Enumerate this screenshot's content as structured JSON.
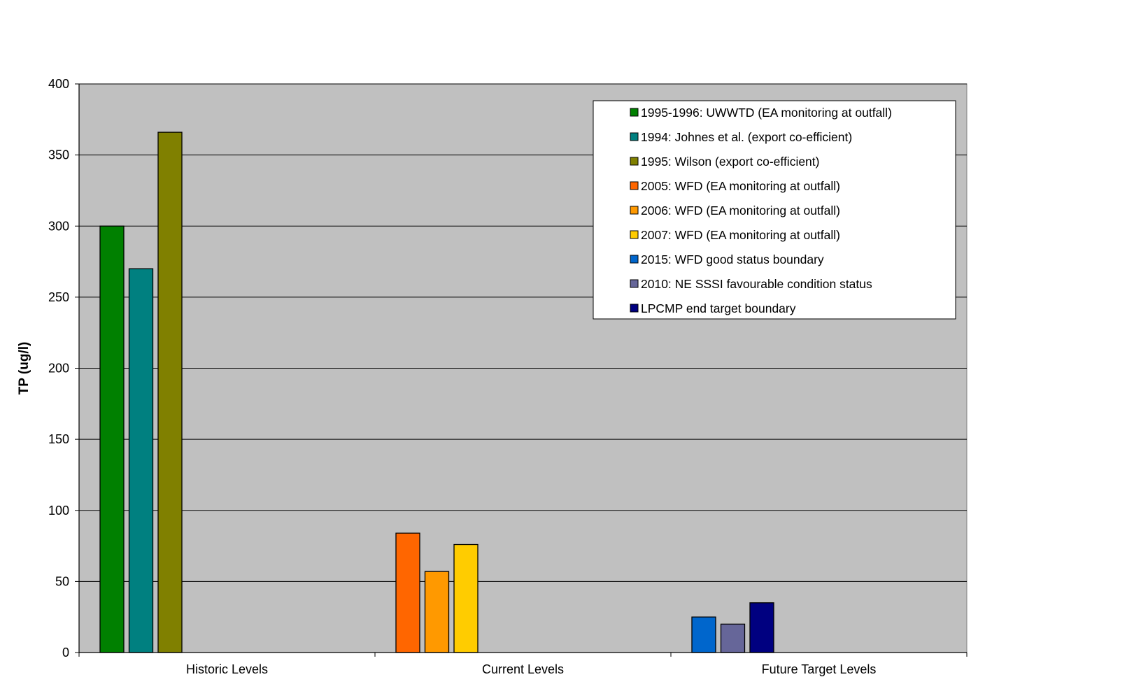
{
  "chart_data": {
    "type": "bar",
    "title": "",
    "xlabel": "",
    "ylabel": "TP (ug/l)",
    "ylim": [
      0,
      400
    ],
    "yticks": [
      0,
      50,
      100,
      150,
      200,
      250,
      300,
      350,
      400
    ],
    "categories": [
      "Historic Levels",
      "Current Levels",
      "Future Target Levels"
    ],
    "grid": true,
    "legend_position": "top-right",
    "plot_background": "#c0c0c0",
    "series": [
      {
        "name": "1995-1996: UWWTD (EA monitoring at outfall)",
        "color": "#008000",
        "category": 0,
        "value": 300
      },
      {
        "name": "1994: Johnes et al. (export co-efficient)",
        "color": "#008080",
        "category": 0,
        "value": 270
      },
      {
        "name": "1995: Wilson (export co-efficient)",
        "color": "#808000",
        "category": 0,
        "value": 366
      },
      {
        "name": "2005: WFD (EA monitoring at outfall)",
        "color": "#ff6600",
        "category": 1,
        "value": 84
      },
      {
        "name": "2006: WFD (EA monitoring at outfall)",
        "color": "#ff9900",
        "category": 1,
        "value": 57
      },
      {
        "name": "2007: WFD (EA monitoring at outfall)",
        "color": "#ffcc00",
        "category": 1,
        "value": 76
      },
      {
        "name": "2015: WFD good status boundary",
        "color": "#0066cc",
        "category": 2,
        "value": 25
      },
      {
        "name": "2010: NE SSSI favourable condition status",
        "color": "#666699",
        "category": 2,
        "value": 20
      },
      {
        "name": "LPCMP end target boundary",
        "color": "#000080",
        "category": 2,
        "value": 35
      }
    ]
  }
}
